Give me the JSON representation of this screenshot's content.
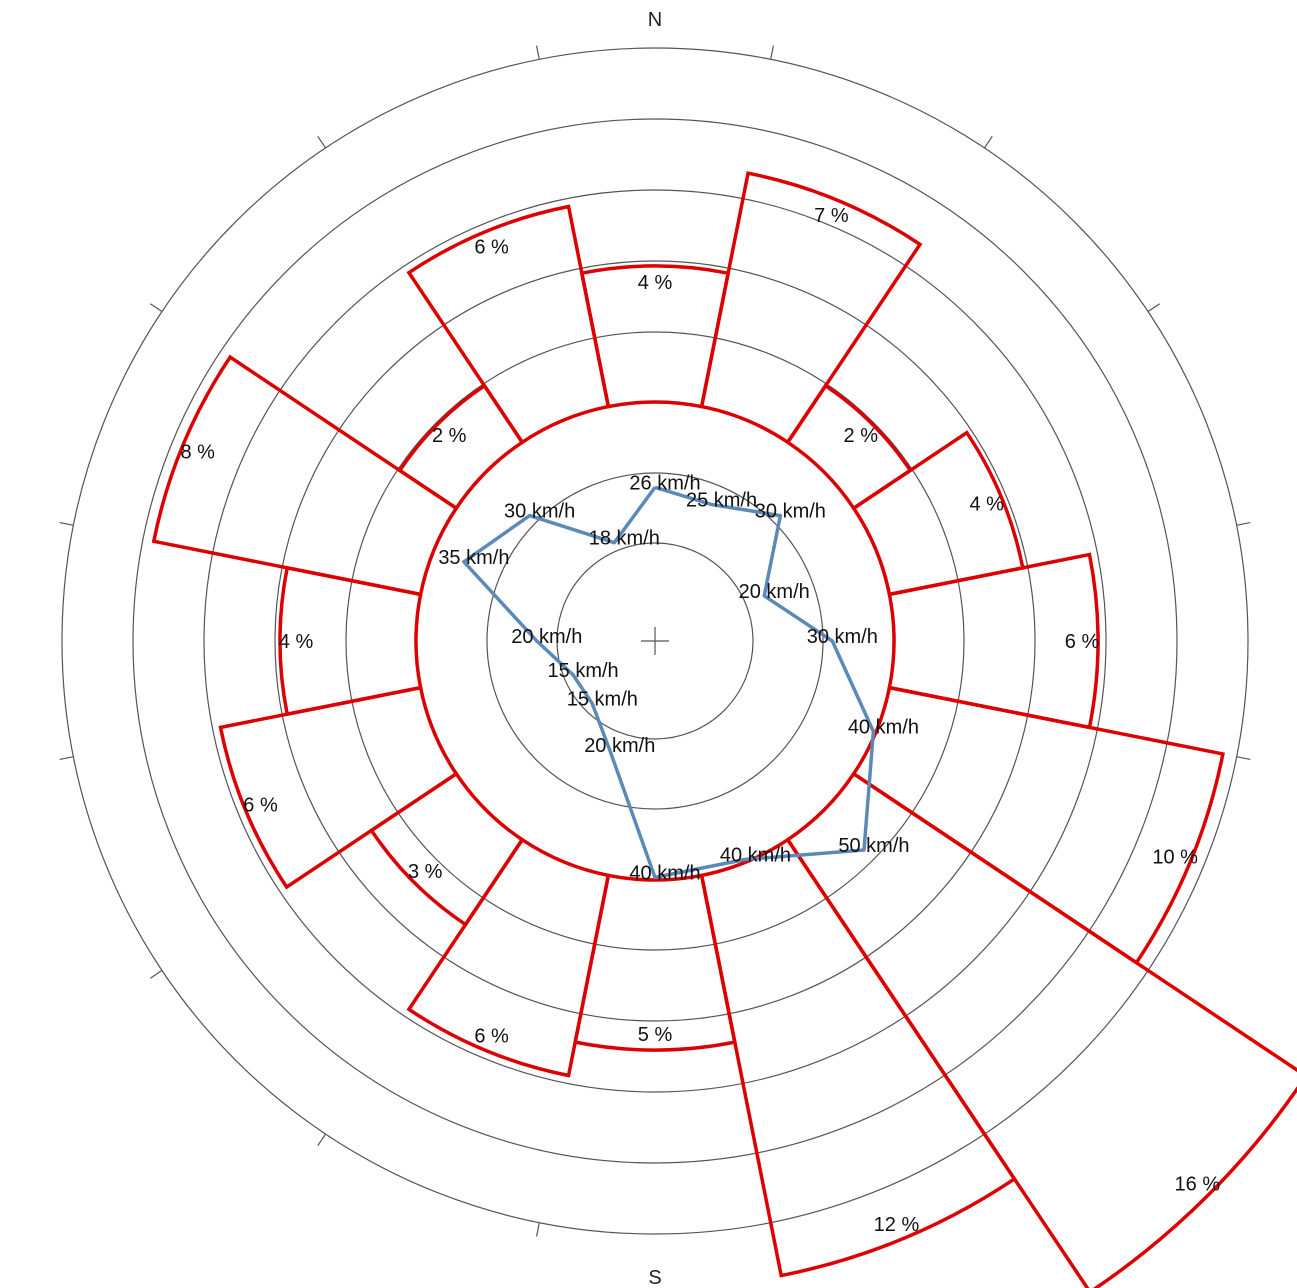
{
  "chart_data": {
    "type": "polar-wind-rose",
    "compass": {
      "north": "N",
      "south": "S"
    },
    "sectors": 16,
    "colors": {
      "frequency": "#dd0000",
      "speed": "#5b89b8",
      "grid": "#555555"
    },
    "frequency": {
      "unit": "%",
      "values": [
        4,
        7,
        2,
        4,
        6,
        10,
        16,
        12,
        5,
        6,
        3,
        6,
        4,
        8,
        2,
        6
      ],
      "labels": [
        "4 %",
        "7 %",
        "2 %",
        "4 %",
        "6 %",
        "10 %",
        "16 %",
        "12 %",
        "5 %",
        "6 %",
        "3 %",
        "6 %",
        "4 %",
        "8 %",
        "2 %",
        "6 %"
      ]
    },
    "speed": {
      "unit": "km/h",
      "values": [
        26,
        25,
        30,
        20,
        30,
        40,
        50,
        40,
        40,
        20,
        15,
        15,
        20,
        35,
        30,
        18
      ],
      "labels": [
        "26 km/h",
        "25 km/h",
        "30 km/h",
        "20 km/h",
        "30 km/h",
        "40 km/h",
        "50 km/h",
        "40 km/h",
        "40 km/h",
        "20 km/h",
        "15 km/h",
        "15 km/h",
        "20 km/h",
        "35 km/h",
        "30 km/h",
        "18 km/h"
      ]
    },
    "grid": true
  }
}
